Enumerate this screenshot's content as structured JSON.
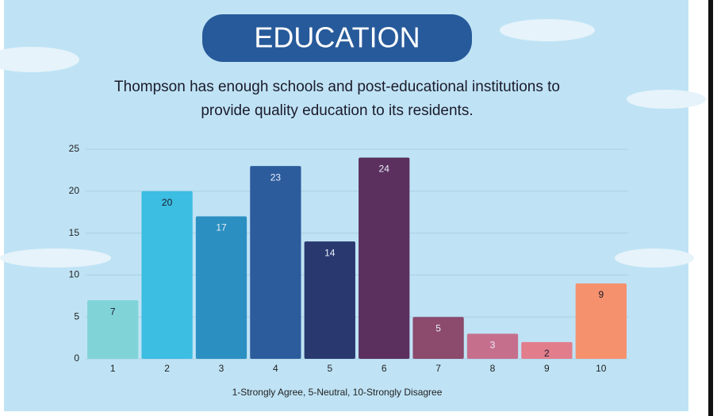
{
  "chart_data": {
    "type": "bar",
    "title": "EDUCATION",
    "subtitle": [
      "Thompson has enough schools and post-educational institutions to",
      "provide quality education to its residents."
    ],
    "x_label": "1-Strongly Agree, 5-Neutral, 10-Strongly Disagree",
    "categories": [
      "1",
      "2",
      "3",
      "4",
      "5",
      "6",
      "7",
      "8",
      "9",
      "10"
    ],
    "values": [
      7,
      20,
      17,
      23,
      14,
      24,
      5,
      3,
      2,
      9
    ],
    "colors": [
      "#80d4d8",
      "#3cbde2",
      "#2b8fc1",
      "#2c5c9c",
      "#29396f",
      "#5b305f",
      "#8c4a6c",
      "#c56f8c",
      "#e27d8c",
      "#f6916e"
    ],
    "ylim": [
      0,
      25
    ],
    "yticks": [
      0,
      5,
      10,
      15,
      20,
      25
    ],
    "grid": true
  }
}
